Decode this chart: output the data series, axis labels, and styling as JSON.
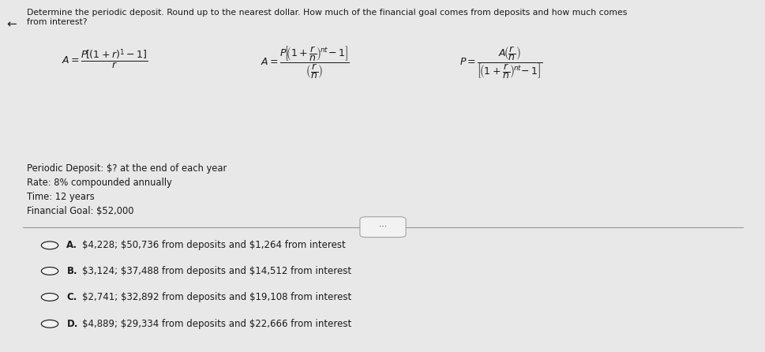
{
  "bg_color": "#e8e8e8",
  "card_color": "#f2f2f2",
  "title_line1": "Determine the periodic deposit. Round up to the nearest dollar. How much of the financial goal comes from deposits and how much comes",
  "title_line2": "from interest?",
  "info_lines": [
    "Periodic Deposit: $? at the end of each year",
    "Rate: 8% compounded annually",
    "Time: 12 years",
    "Financial Goal: $52,000"
  ],
  "options": [
    {
      "label": "A.",
      "text": "$4,228; $50,736 from deposits and $1,264 from interest"
    },
    {
      "label": "B.",
      "text": "$3,124; $37,488 from deposits and $14,512 from interest"
    },
    {
      "label": "C.",
      "text": "$2,741; $32,892 from deposits and $19,108 from interest"
    },
    {
      "label": "D.",
      "text": "$4,889; $29,334 from deposits and $22,666 from interest"
    }
  ],
  "text_color": "#1a1a1a",
  "separator_color": "#999999",
  "circle_color": "#1a1a1a",
  "arrow_color": "#333333"
}
